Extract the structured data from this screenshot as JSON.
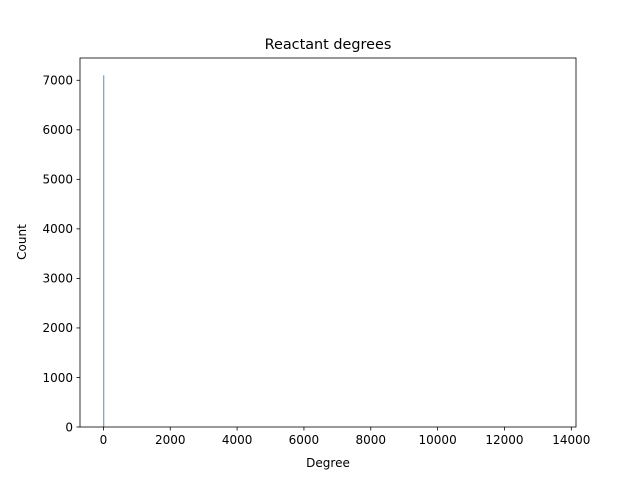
{
  "chart_data": {
    "type": "bar",
    "title": "Reactant degrees",
    "xlabel": "Degree",
    "ylabel": "Count",
    "xlim": [
      -700,
      14140
    ],
    "ylim": [
      0,
      7450
    ],
    "xticks": [
      0,
      2000,
      4000,
      6000,
      8000,
      10000,
      12000,
      14000
    ],
    "yticks": [
      0,
      1000,
      2000,
      3000,
      4000,
      5000,
      6000,
      7000
    ],
    "bin_width": 10,
    "bars": [
      {
        "x": 0,
        "value": 7100
      }
    ],
    "bar_color": "#1f77b4",
    "grid": false,
    "legend": "none"
  }
}
